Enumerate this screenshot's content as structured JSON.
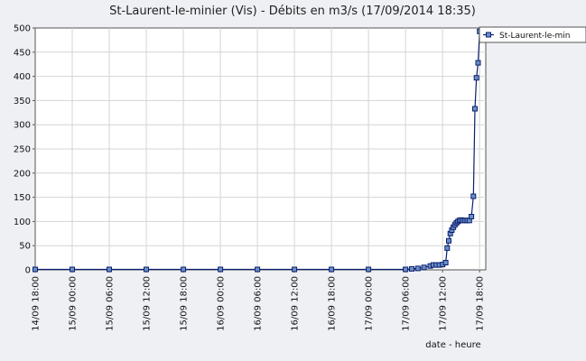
{
  "chart_data": {
    "type": "line",
    "title": "St-Laurent-le-minier (Vis) - Débits en m3/s (17/09/2014 18:35)",
    "xlabel": "date - heure",
    "ylabel": "",
    "ylim": [
      0,
      500
    ],
    "yticks": [
      0,
      50,
      100,
      150,
      200,
      250,
      300,
      350,
      400,
      450,
      500
    ],
    "xlim": [
      "2014-09-14 18:00",
      "2014-09-17 19:00"
    ],
    "xticks": [
      "14/09 18:00",
      "15/09 00:00",
      "15/09 06:00",
      "15/09 12:00",
      "15/09 18:00",
      "16/09 00:00",
      "16/09 06:00",
      "16/09 12:00",
      "16/09 18:00",
      "17/09 00:00",
      "17/09 06:00",
      "17/09 12:00",
      "17/09 18:00"
    ],
    "grid": true,
    "legend": "top-right",
    "colors": {
      "line": "#0b1f6e",
      "marker_fill": "#6a8fc8",
      "marker_stroke": "#0b1f6e"
    },
    "series": [
      {
        "name": "St-Laurent-le-min",
        "points": [
          [
            "2014-09-14 18:00",
            1
          ],
          [
            "2014-09-15 00:00",
            1
          ],
          [
            "2014-09-15 06:00",
            1
          ],
          [
            "2014-09-15 12:00",
            1
          ],
          [
            "2014-09-15 18:00",
            1
          ],
          [
            "2014-09-16 00:00",
            1
          ],
          [
            "2014-09-16 06:00",
            1
          ],
          [
            "2014-09-16 12:00",
            1
          ],
          [
            "2014-09-16 18:00",
            1
          ],
          [
            "2014-09-17 00:00",
            1
          ],
          [
            "2014-09-17 06:00",
            1
          ],
          [
            "2014-09-17 07:00",
            2
          ],
          [
            "2014-09-17 08:00",
            3
          ],
          [
            "2014-09-17 09:00",
            5
          ],
          [
            "2014-09-17 10:00",
            8
          ],
          [
            "2014-09-17 10:30",
            10
          ],
          [
            "2014-09-17 11:00",
            10
          ],
          [
            "2014-09-17 11:30",
            10
          ],
          [
            "2014-09-17 12:00",
            11
          ],
          [
            "2014-09-17 12:30",
            15
          ],
          [
            "2014-09-17 12:45",
            45
          ],
          [
            "2014-09-17 13:00",
            60
          ],
          [
            "2014-09-17 13:15",
            75
          ],
          [
            "2014-09-17 13:30",
            82
          ],
          [
            "2014-09-17 13:45",
            88
          ],
          [
            "2014-09-17 14:00",
            93
          ],
          [
            "2014-09-17 14:15",
            97
          ],
          [
            "2014-09-17 14:30",
            100
          ],
          [
            "2014-09-17 14:45",
            102
          ],
          [
            "2014-09-17 15:00",
            103
          ],
          [
            "2014-09-17 15:20",
            102
          ],
          [
            "2014-09-17 15:40",
            102
          ],
          [
            "2014-09-17 16:00",
            102
          ],
          [
            "2014-09-17 16:20",
            102
          ],
          [
            "2014-09-17 16:40",
            110
          ],
          [
            "2014-09-17 17:00",
            152
          ],
          [
            "2014-09-17 17:15",
            333
          ],
          [
            "2014-09-17 17:30",
            397
          ],
          [
            "2014-09-17 17:45",
            428
          ],
          [
            "2014-09-17 18:00",
            493
          ]
        ]
      }
    ]
  }
}
